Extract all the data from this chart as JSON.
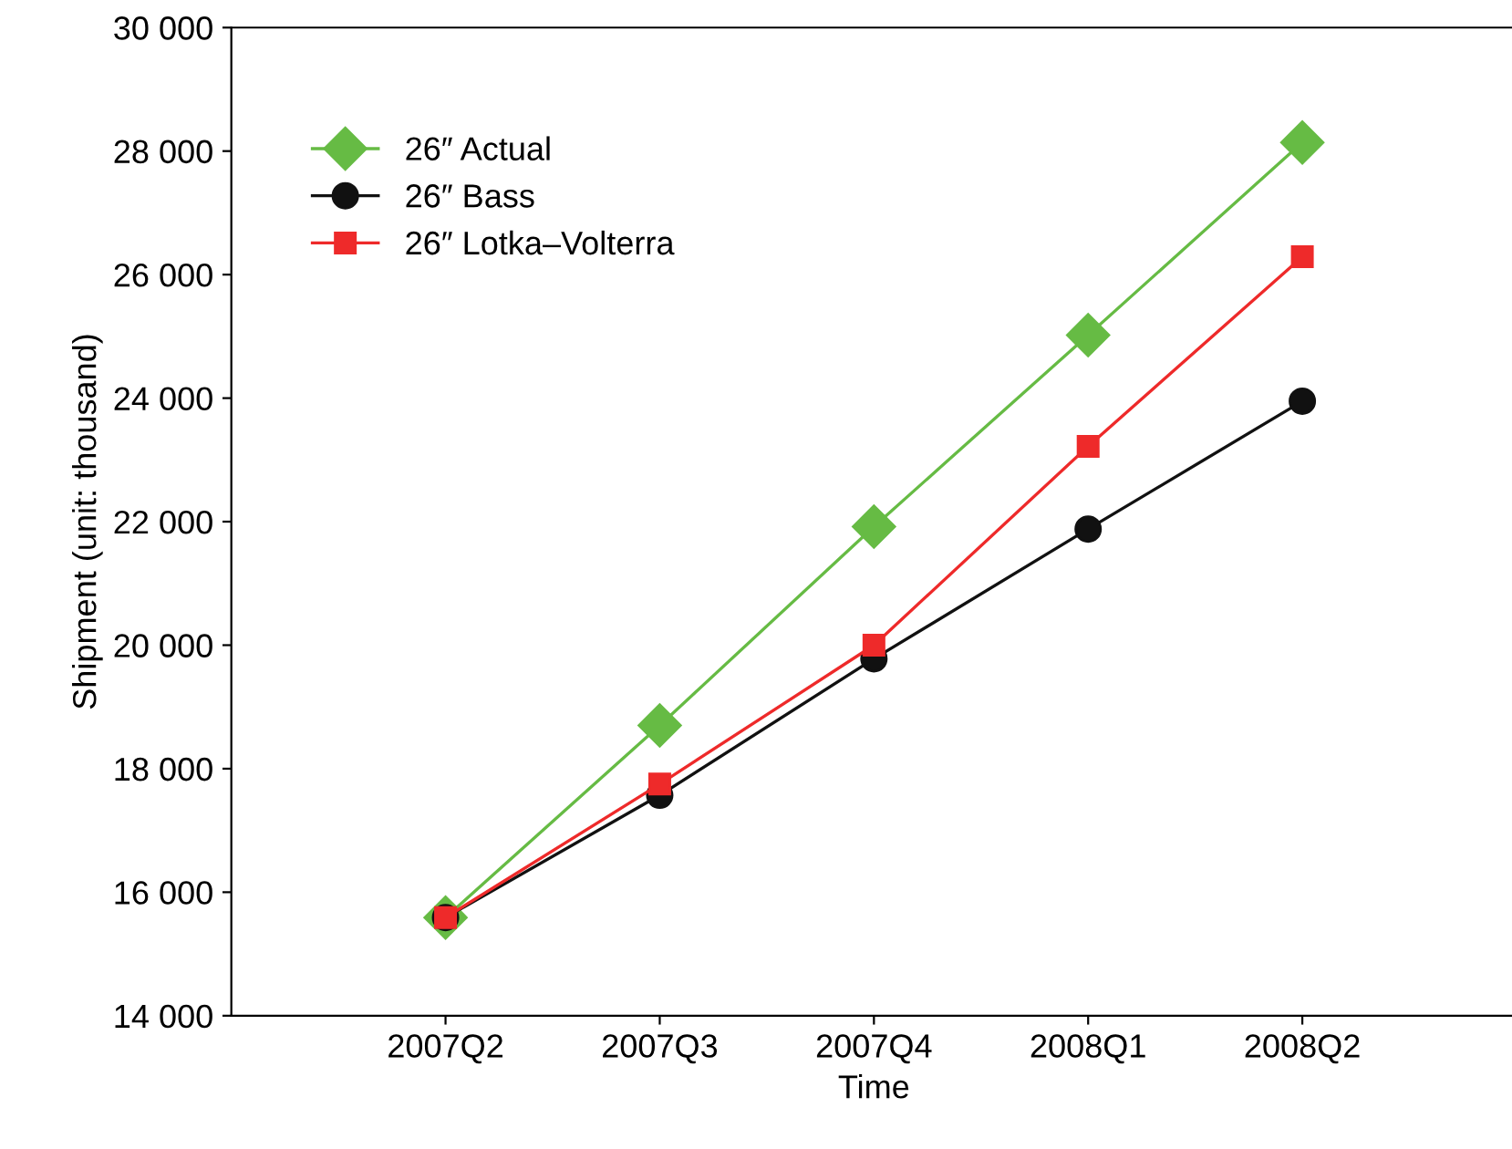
{
  "chart_data": {
    "type": "line",
    "xlabel": "Time",
    "ylabel": "Shipment (unit: thousand)",
    "categories": [
      "2007Q2",
      "2007Q3",
      "2007Q4",
      "2008Q1",
      "2008Q2"
    ],
    "series": [
      {
        "name": "26″ Actual",
        "color": "#66bb44",
        "marker": "diamond",
        "values": [
          15590,
          18700,
          21920,
          25020,
          28140
        ]
      },
      {
        "name": "26″ Bass",
        "color": "#111111",
        "marker": "circle",
        "values": [
          15590,
          17570,
          19780,
          21880,
          23950
        ]
      },
      {
        "name": "26″ Lotka–Volterra",
        "color": "#ee2a2a",
        "marker": "square",
        "values": [
          15590,
          17750,
          20000,
          23220,
          26290
        ]
      }
    ],
    "ylim": [
      14000,
      30000
    ],
    "yticks": [
      {
        "value": 14000,
        "label": "14 000"
      },
      {
        "value": 16000,
        "label": "16 000"
      },
      {
        "value": 18000,
        "label": "18 000"
      },
      {
        "value": 20000,
        "label": "20 000"
      },
      {
        "value": 22000,
        "label": "22 000"
      },
      {
        "value": 24000,
        "label": "24 000"
      },
      {
        "value": 26000,
        "label": "26 000"
      },
      {
        "value": 28000,
        "label": "28 000"
      },
      {
        "value": 30000,
        "label": "30 000"
      }
    ],
    "grid": false,
    "legend": "top left",
    "line_style": "solid"
  }
}
